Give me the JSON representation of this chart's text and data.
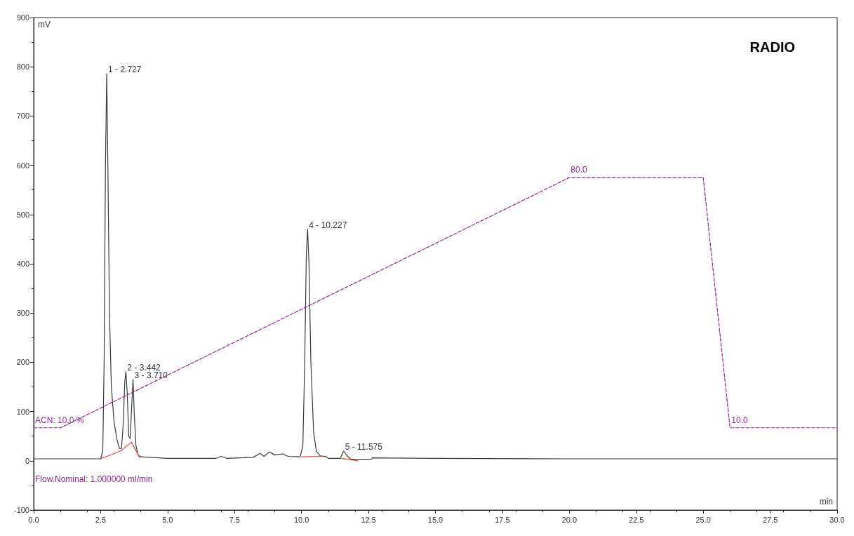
{
  "chart_data": {
    "type": "line",
    "xlabel": "min",
    "ylabel": "mV",
    "grid": false,
    "marker": "none",
    "xlim": [
      0,
      30
    ],
    "ylim": [
      -100,
      900
    ],
    "xticks": [
      {
        "value": 0,
        "label": "0.0"
      },
      {
        "value": 2.5,
        "label": "2.5"
      },
      {
        "value": 5,
        "label": "5.0"
      },
      {
        "value": 7.5,
        "label": "7.5"
      },
      {
        "value": 10,
        "label": "10.0"
      },
      {
        "value": 12.5,
        "label": "12.5"
      },
      {
        "value": 15,
        "label": "15.0"
      },
      {
        "value": 17.5,
        "label": "17.5"
      },
      {
        "value": 20,
        "label": "20.0"
      },
      {
        "value": 22.5,
        "label": "22.5"
      },
      {
        "value": 25,
        "label": "25.0"
      },
      {
        "value": 27.5,
        "label": "27.5"
      },
      {
        "value": 30,
        "label": "30.0"
      }
    ],
    "yticks": [
      -100,
      0,
      100,
      200,
      300,
      400,
      500,
      600,
      700,
      800,
      900
    ],
    "series": [
      {
        "color": "#3a3a3a",
        "line_style": "solid",
        "x": [
          0,
          2.5,
          2.58,
          2.63,
          2.68,
          2.727,
          2.77,
          2.83,
          2.9,
          3.0,
          3.1,
          3.2,
          3.28,
          3.35,
          3.4,
          3.442,
          3.49,
          3.55,
          3.6,
          3.65,
          3.71,
          3.76,
          3.82,
          3.9,
          4.0,
          5,
          6.8,
          7.0,
          7.2,
          8.2,
          8.45,
          8.6,
          8.8,
          9.0,
          9.3,
          9.5,
          9.95,
          10.05,
          10.12,
          10.18,
          10.227,
          10.28,
          10.35,
          10.45,
          10.55,
          10.7,
          10.9,
          11.0,
          11.45,
          11.575,
          11.7,
          11.85,
          12.0,
          12.6,
          12.65,
          15,
          20,
          25,
          30
        ],
        "values": [
          4,
          4,
          20,
          200,
          600,
          786,
          600,
          300,
          150,
          80,
          45,
          25,
          25,
          80,
          160,
          181,
          140,
          50,
          45,
          100,
          165,
          90,
          30,
          12,
          8,
          5,
          5,
          9,
          5,
          7,
          15,
          9,
          18,
          12,
          14,
          9,
          8,
          30,
          200,
          420,
          470,
          400,
          200,
          60,
          20,
          10,
          9,
          5,
          5,
          20,
          10,
          3,
          3,
          3,
          6,
          5,
          4,
          4,
          4
        ]
      },
      {
        "color": "#e8403a",
        "line_style": "solid",
        "x": [
          2.5,
          3.25,
          3.65,
          3.95,
          3.97,
          10.0,
          10.8,
          10.82,
          11.5,
          12.1
        ],
        "values": [
          4,
          20,
          38,
          7,
          null,
          8,
          9,
          null,
          5,
          0
        ]
      },
      {
        "color": "#8b2a8b",
        "line_style": "dashed",
        "x": [
          0,
          1,
          20,
          25,
          26,
          30
        ],
        "values": [
          67,
          67,
          575,
          575,
          67,
          67
        ]
      }
    ],
    "annotations": [
      "RADIO",
      "Flow.Nominal: 1.000000 ml/min",
      {
        "text": "ACN: 10.0 %",
        "x": 0,
        "y": 67
      },
      {
        "text": "80.0",
        "x": 20,
        "y": 575
      },
      {
        "text": "10.0",
        "x": 26,
        "y": 67
      },
      {
        "text": "1 - 2.727",
        "x": 2.727,
        "y": 786
      },
      {
        "text": "2 - 3.442",
        "x": 3.442,
        "y": 181
      },
      {
        "text": "3 - 3.710",
        "x": 3.71,
        "y": 165
      },
      {
        "text": "4 - 10.227",
        "x": 10.227,
        "y": 470
      },
      {
        "text": "5 - 11.575",
        "x": 11.575,
        "y": 20
      }
    ]
  }
}
